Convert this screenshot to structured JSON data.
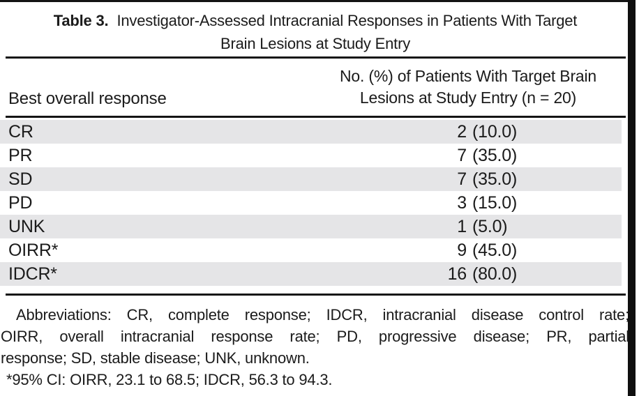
{
  "title": {
    "label": "Table 3.",
    "line1": "Investigator-Assessed Intracranial Responses in Patients With Target",
    "line2": "Brain Lesions at Study Entry"
  },
  "header": {
    "col1": "Best overall response",
    "col2_line1": "No. (%) of Patients With Target Brain",
    "col2_line2": "Lesions at Study Entry (n = 20)"
  },
  "rows": [
    {
      "label": "CR",
      "n": "2",
      "pct": "(10.0)"
    },
    {
      "label": "PR",
      "n": "7",
      "pct": "(35.0)"
    },
    {
      "label": "SD",
      "n": "7",
      "pct": "(35.0)"
    },
    {
      "label": "PD",
      "n": "3",
      "pct": "(15.0)"
    },
    {
      "label": "UNK",
      "n": "1",
      "pct": "(5.0)"
    },
    {
      "label": "OIRR*",
      "n": "9",
      "pct": "(45.0)"
    },
    {
      "label": "IDCR*",
      "n": "16",
      "pct": "(80.0)"
    }
  ],
  "footnotes": {
    "line1": "Abbreviations: CR, complete response; IDCR, intracranial disease control rate;",
    "line2": "OIRR, overall intracranial response rate; PD, progressive disease; PR, partial",
    "line3": "response; SD, stable disease; UNK, unknown.",
    "line4": "*95% CI: OIRR, 23.1 to 68.5; IDCR, 56.3 to 94.3."
  },
  "colors": {
    "row_shade": "#e5e5e7",
    "rule": "#141414",
    "text": "#1b1b1b",
    "background": "#ffffff"
  },
  "chart_data": {
    "type": "table",
    "title": "Table 3. Investigator-Assessed Intracranial Responses in Patients With Target Brain Lesions at Study Entry",
    "columns": [
      "Best overall response",
      "No. (%) of Patients With Target Brain Lesions at Study Entry (n = 20)"
    ],
    "rows": [
      [
        "CR",
        "2 (10.0)"
      ],
      [
        "PR",
        "7 (35.0)"
      ],
      [
        "SD",
        "7 (35.0)"
      ],
      [
        "PD",
        "3 (15.0)"
      ],
      [
        "UNK",
        "1 (5.0)"
      ],
      [
        "OIRR*",
        "9 (45.0)"
      ],
      [
        "IDCR*",
        "16 (80.0)"
      ]
    ],
    "notes": [
      "Abbreviations: CR, complete response; IDCR, intracranial disease control rate; OIRR, overall intracranial response rate; PD, progressive disease; PR, partial response; SD, stable disease; UNK, unknown.",
      "*95% CI: OIRR, 23.1 to 68.5; IDCR, 56.3 to 94.3."
    ]
  }
}
